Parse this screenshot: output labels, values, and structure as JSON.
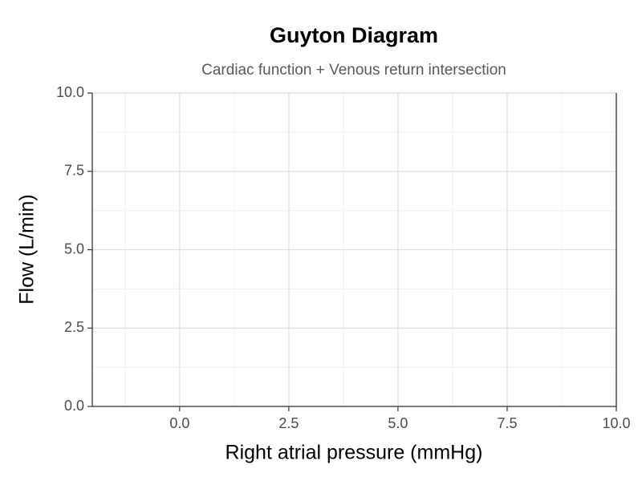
{
  "chart_data": {
    "type": "line",
    "title": "Guyton Diagram",
    "subtitle": "Cardiac function + Venous return intersection",
    "x_label": "Right atrial pressure (mmHg)",
    "y_label": "Flow (L/min)",
    "series": [],
    "xlim": [
      -2,
      10
    ],
    "xticks": [
      {
        "value": 0,
        "label": "0.0"
      },
      2.5,
      {
        "value": 5,
        "label": "5.0"
      },
      7.5,
      {
        "value": 10,
        "label": "10.0"
      }
    ],
    "ylim": [
      0,
      10
    ],
    "yticks": [
      {
        "value": 0,
        "label": "0.0"
      },
      2.5,
      {
        "value": 5,
        "label": "5.0"
      },
      7.5,
      {
        "value": 10,
        "label": "10.0"
      }
    ],
    "grid": true
  }
}
